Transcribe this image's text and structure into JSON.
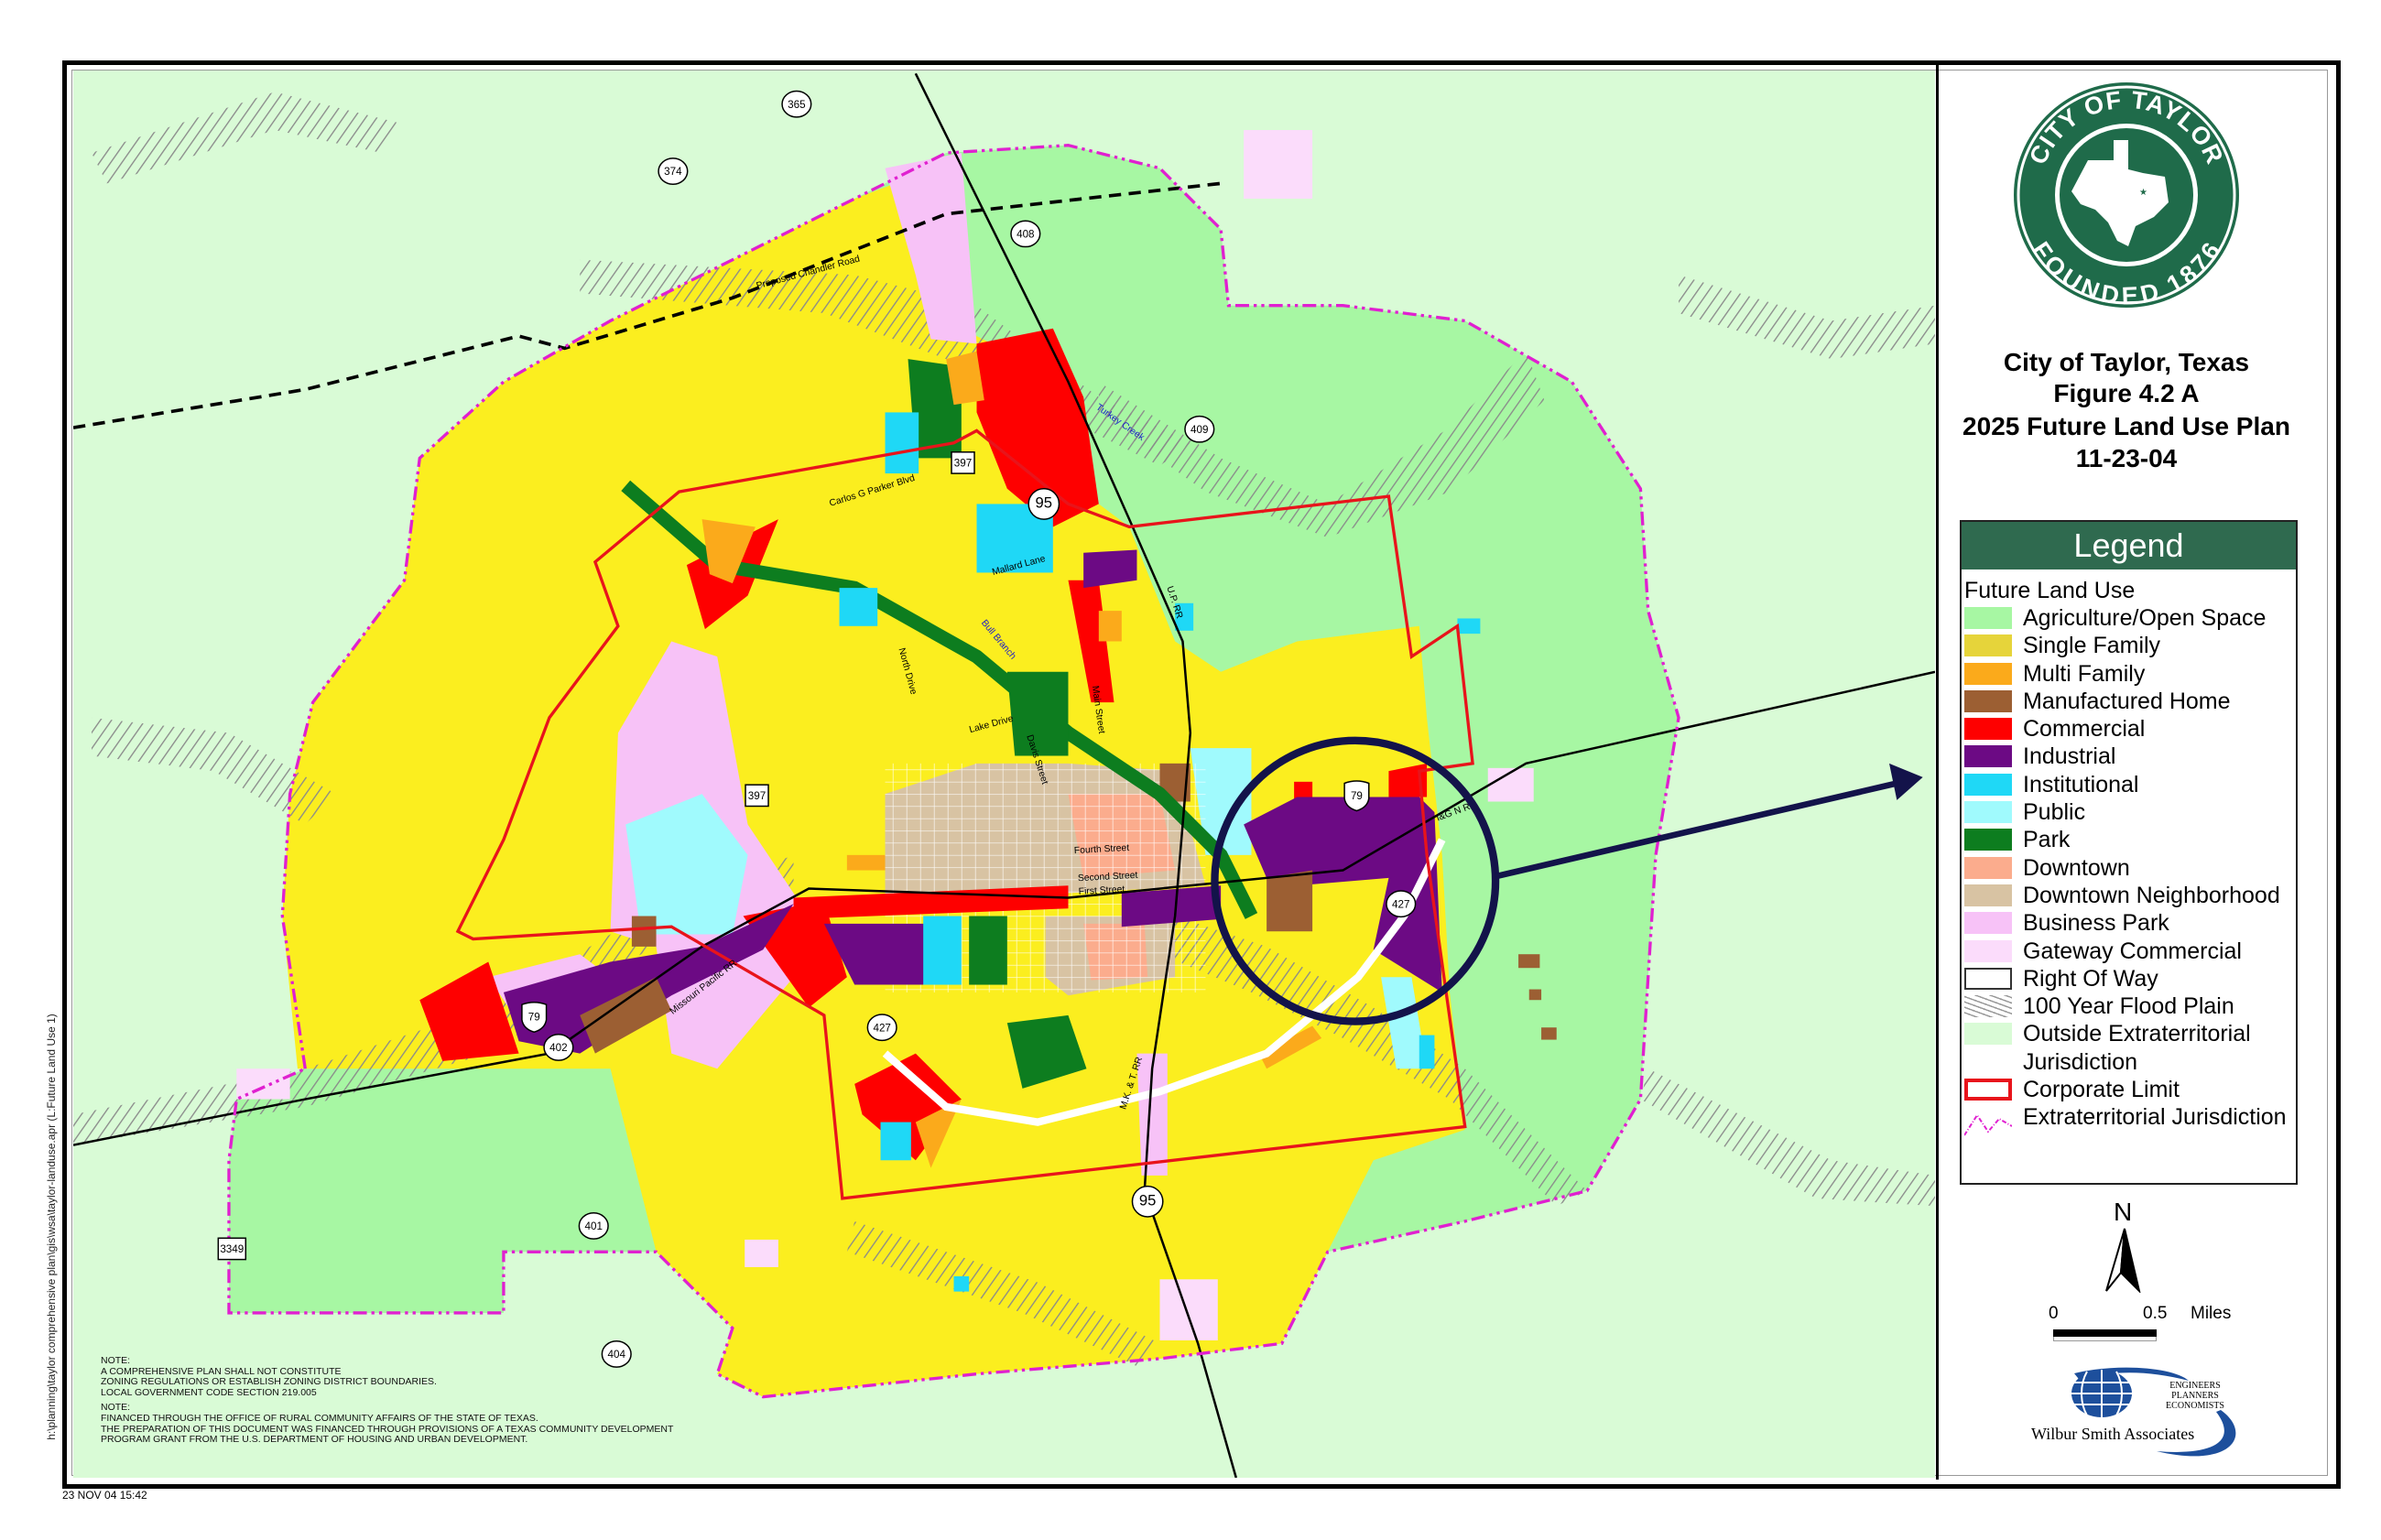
{
  "panel": {
    "logo": {
      "top_text": "CITY OF TAYLOR",
      "bottom_text": "FOUNDED 1876",
      "color": "#1f6b4a"
    },
    "title": [
      "City of Taylor, Texas",
      "Figure 4.2 A",
      "2025 Future Land Use Plan",
      "11-23-04"
    ]
  },
  "legend": {
    "header": "Legend",
    "section": "Future Land Use",
    "items": [
      {
        "label": "Agriculture/Open Space",
        "color": "#a7f7a3",
        "kind": "fill"
      },
      {
        "label": "Single Family",
        "color": "#e6d43a",
        "kind": "fill"
      },
      {
        "label": "Multi Family",
        "color": "#fbaa1b",
        "kind": "fill"
      },
      {
        "label": "Manufactured Home",
        "color": "#9c5f33",
        "kind": "fill"
      },
      {
        "label": "Commercial",
        "color": "#fe0000",
        "kind": "fill"
      },
      {
        "label": "Industrial",
        "color": "#6c0a84",
        "kind": "fill"
      },
      {
        "label": "Institutional",
        "color": "#1fd8f6",
        "kind": "fill"
      },
      {
        "label": "Public",
        "color": "#a0fafd",
        "kind": "fill"
      },
      {
        "label": "Park",
        "color": "#0d7d1f",
        "kind": "fill"
      },
      {
        "label": "Downtown",
        "color": "#fbac8d",
        "kind": "fill"
      },
      {
        "label": "Downtown Neighborhood",
        "color": "#d8c3a3",
        "kind": "fill"
      },
      {
        "label": "Business Park",
        "color": "#f7c2f7",
        "kind": "fill"
      },
      {
        "label": "Gateway Commercial",
        "color": "#fbdcfb",
        "kind": "fill"
      },
      {
        "label": "Right Of Way",
        "color": "#ffffff",
        "kind": "outline"
      },
      {
        "label": "100 Year Flood Plain",
        "color": "#888888",
        "kind": "hatch"
      },
      {
        "label": "Outside Extraterritorial Jurisdiction",
        "color": "#d9fbd6",
        "kind": "fill"
      },
      {
        "label": "Corporate Limit",
        "color": "#e8141b",
        "kind": "red-outline"
      },
      {
        "label": "Extraterritorial Jurisdiction",
        "color": "#e020d0",
        "kind": "dashline"
      }
    ]
  },
  "north": "N",
  "scale": {
    "start": "0",
    "end": "0.5",
    "unit": "Miles"
  },
  "company": {
    "name": "Wilbur Smith Associates",
    "tagline": [
      "ENGINEERS",
      "PLANNERS",
      "ECONOMISTS"
    ]
  },
  "notes": [
    "NOTE:",
    "A COMPREHENSIVE PLAN SHALL NOT CONSTITUTE",
    "ZONING REGULATIONS OR ESTABLISH ZONING DISTRICT BOUNDARIES.",
    "LOCAL GOVERNMENT CODE SECTION 219.005",
    "NOTE:",
    "FINANCED THROUGH THE OFFICE OF RURAL COMMUNITY AFFAIRS OF THE STATE OF TEXAS.",
    "THE PREPARATION OF THIS DOCUMENT WAS FINANCED THROUGH PROVISIONS OF A TEXAS COMMUNITY DEVELOPMENT",
    "PROGRAM GRANT FROM THE U.S. DEPARTMENT OF HOUSING AND URBAN DEVELOPMENT."
  ],
  "timestamp": "23 NOV 04 15:42",
  "file_path": "h:\\planning\\taylor comprehensive plan\\gis\\wsa\\taylor-landuse.apr (L:Future Land Use 1)",
  "map": {
    "routes": [
      {
        "number": "365",
        "type": "farm-road"
      },
      {
        "number": "374",
        "type": "farm-road"
      },
      {
        "number": "408",
        "type": "farm-road"
      },
      {
        "number": "409",
        "type": "farm-road"
      },
      {
        "number": "95",
        "type": "state-highway"
      },
      {
        "number": "95",
        "type": "state-highway"
      },
      {
        "number": "427",
        "type": "farm-road"
      },
      {
        "number": "427",
        "type": "farm-road"
      },
      {
        "number": "401",
        "type": "farm-road"
      },
      {
        "number": "404",
        "type": "farm-road"
      },
      {
        "number": "402",
        "type": "farm-road"
      },
      {
        "number": "397",
        "type": "county-road"
      },
      {
        "number": "397",
        "type": "county-road"
      },
      {
        "number": "3349",
        "type": "county-road"
      },
      {
        "number": "79",
        "type": "us-highway"
      },
      {
        "number": "79",
        "type": "us-highway"
      }
    ],
    "labels": [
      {
        "text": "Proposed Chandler Road"
      },
      {
        "text": "Carlos G Parker Blvd"
      },
      {
        "text": "Mallard Lane"
      },
      {
        "text": "North Drive"
      },
      {
        "text": "Lake Drive"
      },
      {
        "text": "Main Street"
      },
      {
        "text": "Davis Street"
      },
      {
        "text": "Fourth Street"
      },
      {
        "text": "Second Street"
      },
      {
        "text": "First Street"
      },
      {
        "text": "U.P. RR"
      },
      {
        "text": "M.K. & T. RR"
      },
      {
        "text": "I&G N RR"
      },
      {
        "text": "Turkey Creek"
      },
      {
        "text": "Bull Branch"
      },
      {
        "text": "Missouri Pacific RR"
      }
    ]
  }
}
